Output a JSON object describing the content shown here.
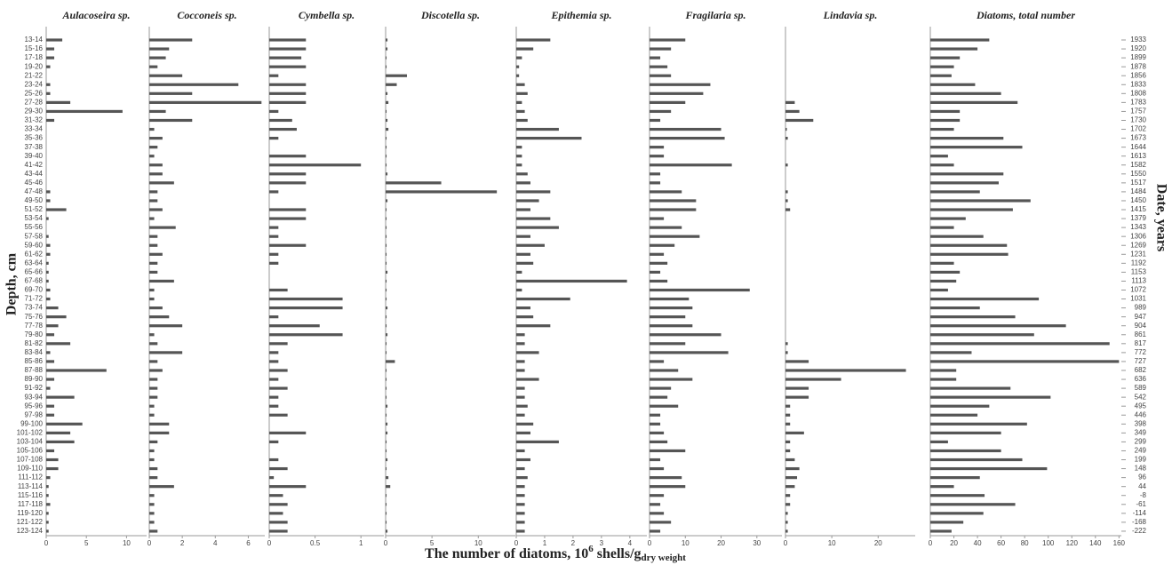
{
  "y_axis_label": "Depth, cm",
  "y2_axis_label": "Date, years",
  "x_axis_label": [
    "The number of diatoms, 10",
    "6",
    " shells/g",
    "dry weight"
  ],
  "categories": [
    "13-14",
    "15-16",
    "17-18",
    "19-20",
    "21-22",
    "23-24",
    "25-26",
    "27-28",
    "29-30",
    "31-32",
    "33-34",
    "35-36",
    "37-38",
    "39-40",
    "41-42",
    "43-44",
    "45-46",
    "47-48",
    "49-50",
    "51-52",
    "53-54",
    "55-56",
    "57-58",
    "59-60",
    "61-62",
    "63-64",
    "65-66",
    "67-68",
    "69-70",
    "71-72",
    "73-74",
    "75-76",
    "77-78",
    "79-80",
    "81-82",
    "83-84",
    "85-86",
    "87-88",
    "89-90",
    "91-92",
    "93-94",
    "95-96",
    "97-98",
    "99-100",
    "101-102",
    "103-104",
    "105-106",
    "107-108",
    "109-110",
    "111-112",
    "113-114",
    "115-116",
    "117-118",
    "119-120",
    "121-122",
    "123-124"
  ],
  "dates": [
    1933,
    1920,
    1899,
    1878,
    1856,
    1833,
    1808,
    1783,
    1757,
    1730,
    1702,
    1673,
    1644,
    1613,
    1582,
    1550,
    1517,
    1484,
    1450,
    1415,
    1379,
    1343,
    1306,
    1269,
    1231,
    1192,
    1153,
    1113,
    1072,
    1031,
    989,
    947,
    904,
    861,
    817,
    772,
    727,
    682,
    636,
    589,
    542,
    495,
    446,
    398,
    349,
    299,
    249,
    199,
    148,
    96,
    44,
    -8,
    -61,
    -114,
    -168,
    -222
  ],
  "chart_data": [
    {
      "type": "bar",
      "title": "Aulacoseira sp.",
      "color": "#555555",
      "xlim": [
        0,
        12.5
      ],
      "xticks": [
        0,
        5,
        10
      ],
      "values": [
        2,
        1,
        1,
        0.5,
        0,
        0.5,
        0.5,
        3,
        9.5,
        1,
        0,
        0,
        0,
        0,
        0,
        0,
        0,
        0.5,
        0.5,
        2.5,
        0.3,
        0,
        0.3,
        0.5,
        0.5,
        0.3,
        0.3,
        0.3,
        0.5,
        0.5,
        1.5,
        2.5,
        1.5,
        1,
        3,
        0.5,
        1,
        7.5,
        1,
        0.5,
        3.5,
        1,
        1,
        4.5,
        3,
        3.5,
        1,
        1.5,
        1.5,
        0.5,
        0.3,
        0.3,
        0.5,
        0.3,
        0.3,
        0.3
      ]
    },
    {
      "type": "bar",
      "title": "Cocconeis sp.",
      "color": "#555555",
      "xlim": [
        0,
        7
      ],
      "xticks": [
        0,
        2,
        4,
        6
      ],
      "values": [
        2.6,
        1.2,
        1,
        0.5,
        2,
        5.4,
        2.6,
        6.8,
        1,
        2.6,
        0.3,
        0.8,
        0.5,
        0.3,
        0.8,
        0.8,
        1.5,
        0.5,
        0.5,
        0.8,
        0.3,
        1.6,
        0.5,
        0.5,
        0.8,
        0.5,
        0.5,
        1.5,
        0.3,
        0.3,
        0.8,
        1.2,
        2,
        0.3,
        0.5,
        2,
        0.5,
        0.8,
        0.5,
        0.5,
        0.5,
        0.3,
        0.3,
        1.2,
        1.2,
        0.5,
        0.3,
        0.3,
        0.5,
        0.5,
        1.5,
        0.3,
        0.3,
        0.3,
        0.3,
        0.5
      ]
    },
    {
      "type": "bar",
      "title": "Cymbella sp.",
      "color": "#555555",
      "xlim": [
        0,
        1.25
      ],
      "xticks": [
        0,
        0.5,
        1
      ],
      "values": [
        0.4,
        0.4,
        0.35,
        0.4,
        0.1,
        0.4,
        0.4,
        0.4,
        0.1,
        0.25,
        0.3,
        0.1,
        0,
        0.4,
        1,
        0.4,
        0.4,
        0.1,
        0,
        0.4,
        0.4,
        0.1,
        0.1,
        0.4,
        0.1,
        0.1,
        0,
        0,
        0.2,
        0.8,
        0.8,
        0.1,
        0.55,
        0.8,
        0.2,
        0.1,
        0.1,
        0.2,
        0.1,
        0.2,
        0.1,
        0.1,
        0.2,
        0,
        0.4,
        0.1,
        0,
        0.1,
        0.2,
        0.05,
        0.4,
        0.15,
        0.2,
        0.15,
        0.2,
        0.2
      ]
    },
    {
      "type": "bar",
      "title": "Discotella sp.",
      "color": "#555555",
      "xlim": [
        0,
        14
      ],
      "xticks": [
        0,
        5,
        10
      ],
      "values": [
        0.2,
        0.2,
        0.1,
        0.1,
        2.3,
        1.2,
        0.2,
        0.3,
        0.1,
        0.2,
        0.3,
        0.1,
        0.1,
        0.1,
        0.1,
        0.2,
        6,
        12,
        0.2,
        0.1,
        0.1,
        0.1,
        0.1,
        0.1,
        0.1,
        0.1,
        0.2,
        0.1,
        0.1,
        0.1,
        0.2,
        0.1,
        0.1,
        0.2,
        0.1,
        0.1,
        1,
        0.1,
        0.1,
        0.1,
        0.1,
        0.2,
        0.1,
        0.2,
        0.2,
        0.1,
        0.1,
        0.2,
        0.1,
        0.3,
        0.5,
        0.1,
        0.1,
        0.1,
        0.1,
        0.2
      ]
    },
    {
      "type": "bar",
      "title": "Epithemia sp.",
      "color": "#555555",
      "xlim": [
        0,
        4.6
      ],
      "xticks": [
        0,
        1,
        2,
        3,
        4
      ],
      "values": [
        1.2,
        0.6,
        0.2,
        0.1,
        0.1,
        0.3,
        0.4,
        0.2,
        0.3,
        0.4,
        1.5,
        2.3,
        0.2,
        0.2,
        0.2,
        0.4,
        0.5,
        1.2,
        0.8,
        0.5,
        1.2,
        1.5,
        0.5,
        1,
        0.5,
        0.6,
        0.2,
        3.9,
        0.2,
        1.9,
        0.5,
        0.6,
        1.2,
        0.3,
        0.3,
        0.8,
        0.3,
        0.3,
        0.8,
        0.3,
        0.3,
        0.4,
        0.3,
        0.6,
        0.5,
        1.5,
        0.3,
        0.5,
        0.3,
        0.4,
        0.3,
        0.3,
        0.3,
        0.3,
        0.3,
        0.3
      ]
    },
    {
      "type": "bar",
      "title": "Fragilaria sp.",
      "color": "#555555",
      "xlim": [
        0,
        37
      ],
      "xticks": [
        0,
        10,
        20,
        30
      ],
      "values": [
        10,
        6,
        3,
        5,
        6,
        17,
        15,
        10,
        6,
        3,
        20,
        21,
        4,
        4,
        23,
        3,
        3,
        9,
        13,
        13,
        4,
        9,
        14,
        7,
        4,
        5,
        3,
        5,
        28,
        11,
        12,
        10,
        12,
        20,
        10,
        22,
        4,
        8,
        12,
        6,
        5,
        8,
        3,
        3,
        4,
        5,
        10,
        3,
        4,
        9,
        10,
        4,
        3,
        4,
        6,
        3
      ]
    },
    {
      "type": "bar",
      "title": "Lindavia sp.",
      "color": "#555555",
      "xlim": [
        0,
        28
      ],
      "xticks": [
        0,
        10,
        20
      ],
      "values": [
        0,
        0,
        0,
        0,
        0,
        0,
        0,
        2,
        3,
        6,
        0.3,
        0.5,
        0,
        0,
        0.5,
        0,
        0,
        0.5,
        0.5,
        1,
        0,
        0,
        0,
        0,
        0,
        0,
        0,
        0,
        0,
        0,
        0,
        0,
        0,
        0,
        0.5,
        0.5,
        5,
        26,
        12,
        5,
        5,
        1,
        1,
        1,
        4,
        1,
        1,
        2,
        3,
        2.5,
        2,
        1,
        1,
        0.5,
        0.5,
        0.5
      ]
    },
    {
      "type": "bar",
      "title": "Diatoms, total number",
      "color": "#555555",
      "xlim": [
        0,
        162
      ],
      "xticks": [
        0,
        20,
        40,
        60,
        80,
        100,
        120,
        140,
        160
      ],
      "values": [
        50,
        40,
        25,
        20,
        18,
        38,
        60,
        74,
        25,
        25,
        20,
        62,
        78,
        15,
        20,
        62,
        58,
        42,
        85,
        70,
        30,
        20,
        45,
        65,
        66,
        20,
        25,
        22,
        15,
        92,
        42,
        72,
        115,
        88,
        152,
        35,
        160,
        22,
        22,
        68,
        102,
        50,
        40,
        82,
        60,
        15,
        60,
        78,
        99,
        42,
        20,
        46,
        72,
        45,
        28,
        18
      ]
    }
  ]
}
